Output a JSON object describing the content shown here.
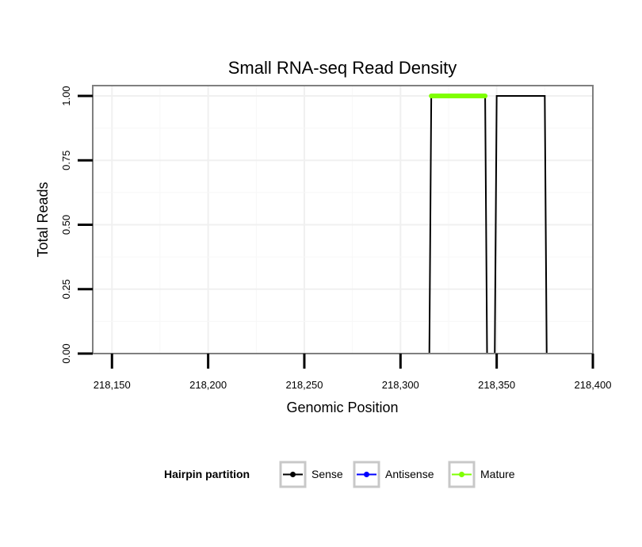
{
  "chart_data": {
    "type": "line",
    "title": "Small RNA-seq Read Density",
    "xlabel": "Genomic Position",
    "ylabel": "Total Reads",
    "xlim": [
      218140,
      218400
    ],
    "ylim": [
      0,
      1.04
    ],
    "x_ticks": [
      218150,
      218200,
      218250,
      218300,
      218350,
      218400
    ],
    "x_tick_labels": [
      "218,150",
      "218,200",
      "218,250",
      "218,300",
      "218,350",
      "218,400"
    ],
    "y_ticks": [
      0,
      0.25,
      0.5,
      0.75,
      1.0
    ],
    "y_tick_labels": [
      "0.00",
      "0.25",
      "0.50",
      "0.75",
      "1.00"
    ],
    "grid": true,
    "legend": {
      "title": "Hairpin partition",
      "position": "bottom",
      "entries": [
        "Sense",
        "Antisense",
        "Mature"
      ]
    },
    "series": [
      {
        "name": "Sense",
        "color": "#000000",
        "x": [
          218144,
          218315,
          218316,
          218344,
          218345,
          218349,
          218350,
          218375,
          218376,
          218393
        ],
        "y": [
          0,
          0,
          1,
          1,
          0,
          0,
          1,
          1,
          0,
          0
        ]
      },
      {
        "name": "Antisense",
        "color": "#0000ff",
        "x": [
          218315,
          218376
        ],
        "y": [
          0,
          0
        ]
      },
      {
        "name": "Mature",
        "color": "#7fff00",
        "x": [
          218316,
          218344
        ],
        "y": [
          1,
          1
        ]
      }
    ]
  }
}
